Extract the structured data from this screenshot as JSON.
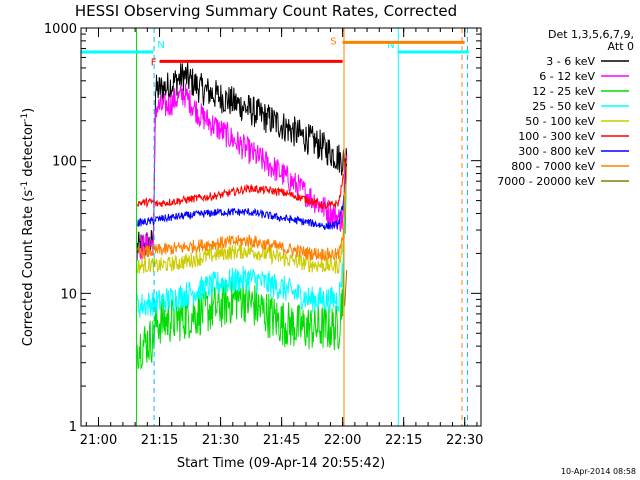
{
  "chart_data": {
    "type": "line",
    "title": "HESSI Observing Summary Count Rates, Corrected",
    "xlabel": "Start Time (09-Apr-14 20:55:42)",
    "ylabel": "Corrected Count Rate (s⁻¹ detector⁻¹)",
    "ylabel_parts": [
      "Corrected Count Rate (s",
      "-1",
      " detector",
      "-1",
      ")"
    ],
    "y_scale": "log",
    "ylim": [
      1,
      1000
    ],
    "xlim": [
      "20:55:42",
      "22:34:00"
    ],
    "x_ticks": [
      {
        "t": "21:00",
        "label": "21:00"
      },
      {
        "t": "21:15",
        "label": "21:15"
      },
      {
        "t": "21:30",
        "label": "21:30"
      },
      {
        "t": "21:45",
        "label": "21:45"
      },
      {
        "t": "22:00",
        "label": "22:00"
      },
      {
        "t": "22:15",
        "label": "22:15"
      },
      {
        "t": "22:30",
        "label": "22:30"
      }
    ],
    "y_ticks": [
      {
        "v": 1,
        "label": "1"
      },
      {
        "v": 10,
        "label": "10"
      },
      {
        "v": 100,
        "label": "100"
      },
      {
        "v": 1000,
        "label": "1000"
      }
    ],
    "legend": {
      "placement": "right",
      "header": [
        "Det 1,3,5,6,7,9,",
        "Att 0"
      ],
      "entries": [
        {
          "name": "3 - 6 keV",
          "color": "#000000"
        },
        {
          "name": "6 - 12 keV",
          "color": "#ff00ff"
        },
        {
          "name": "12 - 25 keV",
          "color": "#00dd00"
        },
        {
          "name": "25 - 50 keV",
          "color": "#00ffff"
        },
        {
          "name": "50 - 100 keV",
          "color": "#cccc00"
        },
        {
          "name": "100 - 300 keV",
          "color": "#ff0000"
        },
        {
          "name": "300 - 800 keV",
          "color": "#0000ff"
        },
        {
          "name": "800 - 7000 keV",
          "color": "#ff8000"
        },
        {
          "name": "7000 - 20000 keV",
          "color": "#808000"
        }
      ]
    },
    "series": [
      {
        "name": "3 - 6 keV",
        "color": "#000000",
        "noise": 0.12,
        "points": [
          [
            "21:09:30",
            22
          ],
          [
            "21:13:30",
            24
          ],
          [
            "21:14:00",
            340
          ],
          [
            "21:17:00",
            360
          ],
          [
            "21:21:00",
            440
          ],
          [
            "21:25:00",
            350
          ],
          [
            "21:35:00",
            260
          ],
          [
            "21:45:00",
            185
          ],
          [
            "21:55:00",
            128
          ],
          [
            "22:00:00",
            100
          ],
          [
            "22:01:00",
            108
          ]
        ]
      },
      {
        "name": "6 - 12 keV",
        "color": "#ff00ff",
        "noise": 0.1,
        "points": [
          [
            "21:09:30",
            22
          ],
          [
            "21:13:30",
            24
          ],
          [
            "21:14:00",
            250
          ],
          [
            "21:17:00",
            260
          ],
          [
            "21:21:00",
            320
          ],
          [
            "21:25:00",
            220
          ],
          [
            "21:35:00",
            130
          ],
          [
            "21:45:00",
            80
          ],
          [
            "21:55:00",
            45
          ],
          [
            "22:00:00",
            35
          ],
          [
            "22:01:00",
            108
          ]
        ]
      },
      {
        "name": "12 - 25 keV",
        "color": "#00dd00",
        "noise": 0.18,
        "points": [
          [
            "21:09:30",
            4
          ],
          [
            "21:13:30",
            4.5
          ],
          [
            "21:14:00",
            6
          ],
          [
            "21:20:00",
            6.5
          ],
          [
            "21:30:00",
            8
          ],
          [
            "21:35:00",
            9.5
          ],
          [
            "21:40:00",
            7.5
          ],
          [
            "21:45:00",
            6
          ],
          [
            "21:50:00",
            5.5
          ],
          [
            "21:59:00",
            5.5
          ],
          [
            "22:00:00",
            10
          ],
          [
            "22:01:00",
            100
          ]
        ]
      },
      {
        "name": "25 - 50 keV",
        "color": "#00ffff",
        "noise": 0.1,
        "points": [
          [
            "21:09:30",
            8
          ],
          [
            "21:13:30",
            8.5
          ],
          [
            "21:14:00",
            8.5
          ],
          [
            "21:20:00",
            9.5
          ],
          [
            "21:30:00",
            12
          ],
          [
            "21:37:00",
            13
          ],
          [
            "21:45:00",
            11
          ],
          [
            "21:52:00",
            9
          ],
          [
            "21:59:00",
            9
          ],
          [
            "22:00:00",
            15
          ],
          [
            "22:01:00",
            100
          ]
        ]
      },
      {
        "name": "50 - 100 keV",
        "color": "#cccc00",
        "noise": 0.06,
        "points": [
          [
            "21:09:30",
            16
          ],
          [
            "21:13:30",
            16.5
          ],
          [
            "21:14:00",
            16
          ],
          [
            "21:20:00",
            17
          ],
          [
            "21:30:00",
            20
          ],
          [
            "21:37:00",
            21
          ],
          [
            "21:45:00",
            18.5
          ],
          [
            "21:52:00",
            16.5
          ],
          [
            "21:59:00",
            16
          ],
          [
            "22:00:00",
            22
          ],
          [
            "22:01:00",
            100
          ]
        ]
      },
      {
        "name": "100 - 300 keV",
        "color": "#ff0000",
        "noise": 0.03,
        "points": [
          [
            "21:09:30",
            48
          ],
          [
            "21:13:30",
            49
          ],
          [
            "21:14:00",
            47
          ],
          [
            "21:20:00",
            50
          ],
          [
            "21:30:00",
            55
          ],
          [
            "21:37:00",
            62
          ],
          [
            "21:45:00",
            58
          ],
          [
            "21:52:00",
            50
          ],
          [
            "21:56:00",
            45
          ],
          [
            "21:59:00",
            48
          ],
          [
            "22:00:00",
            70
          ],
          [
            "22:01:00",
            110
          ]
        ]
      },
      {
        "name": "300 - 800 keV",
        "color": "#0000ff",
        "noise": 0.03,
        "points": [
          [
            "21:09:30",
            34
          ],
          [
            "21:13:30",
            35
          ],
          [
            "21:14:00",
            36
          ],
          [
            "21:20:00",
            38
          ],
          [
            "21:30:00",
            41
          ],
          [
            "21:37:00",
            41
          ],
          [
            "21:45:00",
            37
          ],
          [
            "21:52:00",
            34
          ],
          [
            "21:56:00",
            32
          ],
          [
            "21:59:00",
            33
          ],
          [
            "22:00:00",
            45
          ],
          [
            "22:01:00",
            95
          ]
        ]
      },
      {
        "name": "800 - 7000 keV",
        "color": "#ff8000",
        "noise": 0.05,
        "points": [
          [
            "21:09:30",
            20
          ],
          [
            "21:13:30",
            21
          ],
          [
            "21:14:00",
            21
          ],
          [
            "21:20:00",
            22
          ],
          [
            "21:30:00",
            24
          ],
          [
            "21:37:00",
            25
          ],
          [
            "21:45:00",
            22
          ],
          [
            "21:52:00",
            20
          ],
          [
            "21:59:00",
            19.5
          ],
          [
            "22:00:00",
            25
          ],
          [
            "22:01:00",
            90
          ]
        ]
      },
      {
        "name": "7000 - 20000 keV",
        "color": "#808000",
        "noise": 0.0,
        "points": [
          [
            "22:00:30",
            8
          ],
          [
            "22:01:00",
            15
          ]
        ]
      }
    ],
    "flag_bars": [
      {
        "label": "F",
        "color": "#ff0000",
        "level": 560,
        "start": "21:15:00",
        "end": "22:00:00"
      },
      {
        "label": "N",
        "color": "#00ffff",
        "level": 660,
        "start": "20:55:42",
        "end": "21:13:30"
      },
      {
        "label": "N",
        "color": "#00ffff",
        "level": 660,
        "start": "22:13:30",
        "end": "22:31:00"
      },
      {
        "label": "S",
        "color": "#ff8000",
        "level": 780,
        "start": "22:00:00",
        "end": "22:30:00"
      }
    ],
    "vertical_markers": [
      {
        "t": "21:09:20",
        "color": "#00dd00",
        "style": "solid"
      },
      {
        "t": "21:13:40",
        "color": "#00bbff",
        "style": "dashed"
      },
      {
        "t": "22:00:20",
        "color": "#ff8000",
        "style": "solid"
      },
      {
        "t": "22:13:40",
        "color": "#00ffff",
        "style": "solid"
      },
      {
        "t": "22:29:20",
        "color": "#ff8000",
        "style": "dashed"
      },
      {
        "t": "22:30:40",
        "color": "#00bbff",
        "style": "dashed"
      }
    ],
    "footer_date": "10-Apr-2014 08:58"
  }
}
